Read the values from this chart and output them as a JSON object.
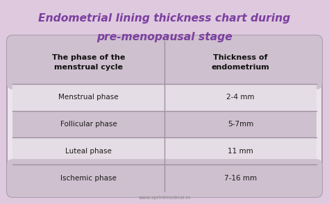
{
  "title_line1": "Endometrial lining thickness chart during",
  "title_line2": "pre-menopausal stage",
  "title_color": "#7B3FA0",
  "background_color": "#DEC9DE",
  "table_bg_color": "#EDE5ED",
  "header_bg_color": "#CEC0CE",
  "header_col1": "The phase of the\nmenstrual cycle",
  "header_col2": "Thickness of\nendometrium",
  "rows": [
    [
      "Menstrual phase",
      "2-4 mm"
    ],
    [
      "Follicular phase",
      "5-7mm"
    ],
    [
      "Luteal phase",
      "11 mm"
    ],
    [
      "Ischemic phase",
      "7-16 mm"
    ]
  ],
  "row_colors": [
    "#E5DDE5",
    "#CEC0CE",
    "#E5DDE5",
    "#CEC0CE"
  ],
  "text_color": "#1a1a1a",
  "header_text_color": "#111111",
  "divider_color": "#A090A0",
  "footer_text": "www.sprintmedical.in",
  "footer_color": "#888888"
}
